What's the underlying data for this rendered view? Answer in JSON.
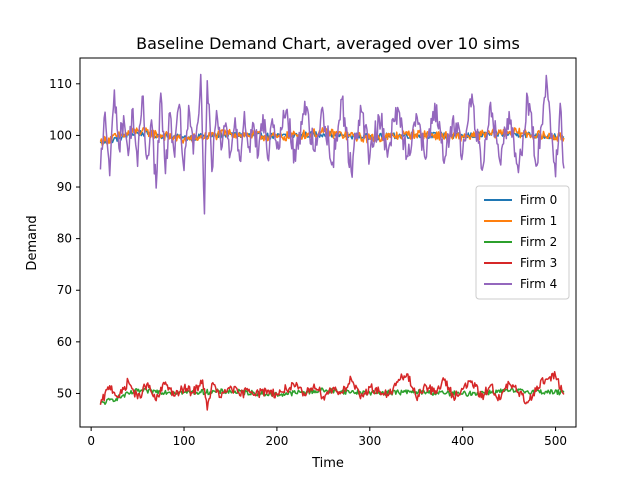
{
  "chart_data": {
    "type": "line",
    "title": "Baseline Demand Chart, averaged over 10 sims",
    "xlabel": "Time",
    "ylabel": "Demand",
    "xlim": [
      -12,
      522
    ],
    "ylim": [
      43.5,
      115
    ],
    "xticks": [
      0,
      100,
      200,
      300,
      400,
      500
    ],
    "yticks": [
      50,
      60,
      70,
      80,
      90,
      100,
      110
    ],
    "grid": false,
    "legend_position": "center-right",
    "x_range": [
      10,
      509
    ],
    "series": [
      {
        "name": "Firm 0",
        "color": "#1f77b4",
        "x": [
          10,
          50,
          100,
          150,
          200,
          250,
          300,
          350,
          400,
          450,
          509
        ],
        "values": [
          98.5,
          100.5,
          99.5,
          100.2,
          99.8,
          100.3,
          99.7,
          100.1,
          99.9,
          100.4,
          99.6
        ]
      },
      {
        "name": "Firm 1",
        "color": "#ff7f0e",
        "x": [
          10,
          50,
          100,
          150,
          200,
          250,
          300,
          350,
          400,
          450,
          509
        ],
        "values": [
          98.8,
          100.9,
          99.2,
          100.4,
          99.6,
          100.6,
          99.4,
          100.3,
          99.7,
          100.7,
          99.5
        ]
      },
      {
        "name": "Firm 2",
        "color": "#2ca02c",
        "x": [
          10,
          50,
          100,
          150,
          200,
          250,
          300,
          350,
          400,
          450,
          509
        ],
        "values": [
          48,
          50.5,
          50.2,
          50.4,
          49.8,
          50.6,
          50.1,
          50.3,
          49.9,
          50.5,
          50.2
        ]
      },
      {
        "name": "Firm 3",
        "color": "#d62728",
        "x": [
          10,
          20,
          30,
          40,
          50,
          60,
          70,
          80,
          90,
          100,
          110,
          120,
          125,
          130,
          140,
          150,
          160,
          170,
          180,
          190,
          200,
          210,
          220,
          230,
          240,
          250,
          260,
          270,
          280,
          290,
          300,
          310,
          320,
          330,
          340,
          350,
          360,
          370,
          380,
          390,
          400,
          410,
          420,
          430,
          440,
          450,
          460,
          470,
          480,
          490,
          500,
          509
        ],
        "values": [
          47.8,
          51.5,
          49.2,
          52.4,
          49.0,
          51.8,
          48.6,
          52.2,
          49.5,
          51.0,
          50.2,
          52.6,
          46.8,
          51.9,
          49.2,
          51.4,
          49.6,
          50.8,
          50.0,
          50.6,
          49.8,
          50.9,
          51.4,
          49.6,
          51.8,
          49.4,
          51.0,
          50.2,
          52.8,
          49.0,
          51.2,
          50.4,
          49.6,
          52.2,
          53.8,
          49.2,
          51.6,
          50.0,
          52.6,
          49.4,
          50.8,
          52.4,
          49.2,
          51.6,
          48.8,
          52.0,
          50.2,
          48.2,
          51.4,
          52.8,
          53.4,
          49.8
        ]
      },
      {
        "name": "Firm 4",
        "color": "#9467bd",
        "x": [
          10,
          15,
          20,
          25,
          30,
          35,
          40,
          45,
          50,
          55,
          60,
          65,
          70,
          75,
          80,
          85,
          90,
          95,
          100,
          105,
          110,
          115,
          118,
          122,
          125,
          130,
          135,
          140,
          145,
          150,
          155,
          160,
          165,
          170,
          175,
          180,
          185,
          190,
          195,
          200,
          210,
          220,
          230,
          240,
          250,
          260,
          270,
          280,
          290,
          300,
          310,
          320,
          330,
          340,
          350,
          360,
          370,
          380,
          390,
          400,
          410,
          420,
          430,
          440,
          450,
          460,
          470,
          480,
          490,
          500,
          505,
          509
        ],
        "values": [
          93.4,
          104.5,
          92.2,
          108.8,
          97.5,
          103.8,
          96.1,
          105.2,
          94.0,
          107.6,
          95.4,
          103.0,
          89.8,
          108.2,
          92.6,
          104.4,
          95.8,
          106.0,
          93.2,
          105.8,
          96.4,
          102.6,
          111.8,
          84.8,
          110.6,
          93.0,
          104.8,
          97.2,
          102.4,
          96.6,
          103.4,
          95.2,
          104.6,
          97.8,
          102.2,
          96.2,
          104.0,
          95.6,
          103.2,
          97.4,
          104.8,
          95.0,
          106.6,
          97.0,
          104.2,
          94.8,
          107.0,
          93.0,
          105.8,
          95.8,
          103.6,
          97.2,
          105.4,
          96.0,
          104.2,
          95.4,
          106.2,
          94.6,
          103.8,
          96.6,
          108.0,
          93.6,
          106.4,
          95.0,
          104.6,
          92.8,
          107.4,
          94.2,
          111.6,
          92.0,
          106.2,
          93.6
        ]
      }
    ]
  }
}
